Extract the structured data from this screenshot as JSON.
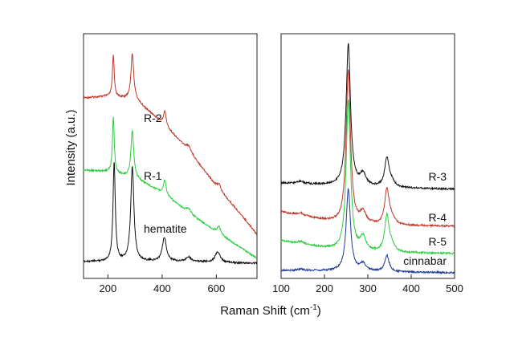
{
  "figure": {
    "ylabel": "Intensity (a.u.)",
    "xlabel_main": "Raman Shift (cm",
    "xlabel_sup": "-1",
    "xlabel_close": ")"
  },
  "chart_data": [
    {
      "type": "line",
      "panel": "left",
      "xlim": [
        110,
        750
      ],
      "y_axis_ticks": "none",
      "xticks": [
        200,
        400,
        600
      ],
      "xtick_labels": [
        "200",
        "400",
        "600"
      ],
      "series": [
        {
          "name": "R-2",
          "color": "#c0392b",
          "baseline": [
            [
              110,
              122
            ],
            [
              200,
              120
            ],
            [
              300,
              124
            ],
            [
              400,
              153
            ],
            [
              500,
              188
            ],
            [
              600,
              232
            ],
            [
              700,
              271
            ],
            [
              750,
              292
            ]
          ],
          "peaks": [
            [
              220,
              52,
              4
            ],
            [
              290,
              57,
              6
            ],
            [
              410,
              18,
              6
            ],
            [
              498,
              6,
              10
            ],
            [
              610,
              7,
              8
            ]
          ]
        },
        {
          "name": "R-1",
          "color": "#2ecc40",
          "baseline": [
            [
              110,
              212
            ],
            [
              200,
              214
            ],
            [
              300,
              222
            ],
            [
              400,
              240
            ],
            [
              500,
              266
            ],
            [
              600,
              289
            ],
            [
              700,
              311
            ],
            [
              750,
              322
            ]
          ],
          "peaks": [
            [
              220,
              70,
              4
            ],
            [
              290,
              58,
              6
            ],
            [
              410,
              18,
              6
            ],
            [
              498,
              6,
              10
            ],
            [
              610,
              9,
              8
            ]
          ]
        },
        {
          "name": "hematite",
          "color": "#111111",
          "baseline": [
            [
              110,
              326
            ],
            [
              200,
              326
            ],
            [
              300,
              326
            ],
            [
              400,
              326
            ],
            [
              500,
              326
            ],
            [
              600,
              327
            ],
            [
              700,
              328
            ],
            [
              750,
              328
            ]
          ],
          "peaks": [
            [
              223,
              124,
              5
            ],
            [
              290,
              118,
              7
            ],
            [
              408,
              30,
              9
            ],
            [
              497,
              6,
              10
            ],
            [
              605,
              13,
              11
            ]
          ]
        }
      ],
      "annotations": [
        {
          "text": "R-2",
          "series": "R-2"
        },
        {
          "text": "R-1",
          "series": "R-1"
        },
        {
          "text": "hematite",
          "series": "hematite"
        }
      ]
    },
    {
      "type": "line",
      "panel": "right",
      "xlim": [
        100,
        500
      ],
      "y_axis_ticks": "none",
      "xticks": [
        100,
        200,
        300,
        400,
        500
      ],
      "xtick_labels": [
        "100",
        "200",
        "300",
        "400",
        "500"
      ],
      "series": [
        {
          "name": "R-3",
          "color": "#111111",
          "baseline": [
            [
              100,
              228
            ],
            [
              250,
              232
            ],
            [
              350,
              234
            ],
            [
              500,
              236
            ]
          ],
          "peaks": [
            [
              145,
              3,
              8
            ],
            [
              255,
              177,
              6
            ],
            [
              289,
              14,
              8
            ],
            [
              344,
              36,
              6
            ],
            [
              355,
              6,
              8
            ]
          ]
        },
        {
          "name": "R-4",
          "color": "#c0392b",
          "baseline": [
            [
              100,
              264
            ],
            [
              250,
              280
            ],
            [
              350,
              281
            ],
            [
              500,
              282
            ]
          ],
          "peaks": [
            [
              145,
              3,
              8
            ],
            [
              255,
              193,
              6
            ],
            [
              289,
              14,
              8
            ],
            [
              344,
              44,
              6
            ],
            [
              355,
              8,
              8
            ]
          ]
        },
        {
          "name": "R-5",
          "color": "#2ecc40",
          "baseline": [
            [
              100,
              300
            ],
            [
              250,
              314
            ],
            [
              350,
              315
            ],
            [
              500,
              316
            ]
          ],
          "peaks": [
            [
              145,
              3,
              8
            ],
            [
              255,
              188,
              6
            ],
            [
              289,
              17,
              8
            ],
            [
              344,
              45,
              6
            ],
            [
              355,
              8,
              8
            ]
          ]
        },
        {
          "name": "cinnabar",
          "color": "#1f3a93",
          "baseline": [
            [
              100,
              337
            ],
            [
              250,
              338
            ],
            [
              350,
              339
            ],
            [
              500,
              340
            ]
          ],
          "peaks": [
            [
              145,
              2,
              8
            ],
            [
              255,
              102,
              6
            ],
            [
              289,
              9,
              8
            ],
            [
              344,
              20,
              6
            ]
          ]
        }
      ],
      "annotations": [
        {
          "text": "R-3",
          "series": "R-3"
        },
        {
          "text": "R-4",
          "series": "R-4"
        },
        {
          "text": "R-5",
          "series": "R-5"
        },
        {
          "text": "cinnabar",
          "series": "cinnabar"
        }
      ]
    }
  ]
}
